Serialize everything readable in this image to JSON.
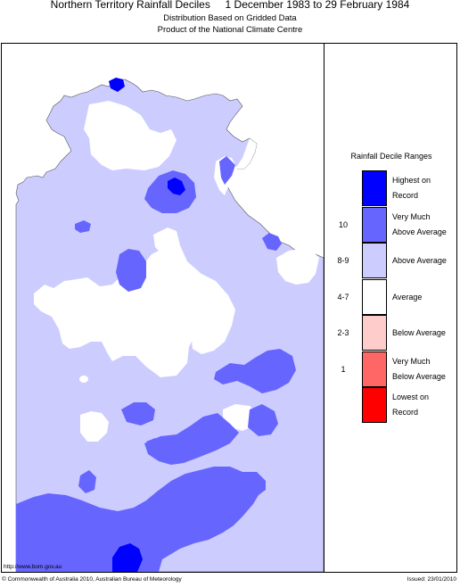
{
  "header": {
    "title": "Northern Territory Rainfall Deciles     1 December 1983 to 29 February 1984",
    "subtitle_1": "Distribution Based on Gridded Data",
    "subtitle_2": "Product of the National Climate Centre"
  },
  "map": {
    "colors": {
      "highest": "#0000ff",
      "very_much_above": "#6666ff",
      "above": "#ccccff",
      "average": "#ffffff",
      "below": "#ffcccc",
      "very_much_below": "#ff6666",
      "lowest": "#ff0000"
    }
  },
  "legend": {
    "title": "Rainfall Decile Ranges",
    "items": [
      {
        "range": "",
        "label_1": "Highest on",
        "label_2": "Record",
        "color": "#0000ff"
      },
      {
        "range": "10",
        "label_1": "Very Much",
        "label_2": "Above Average",
        "color": "#6666ff"
      },
      {
        "range": "8-9",
        "label_1": "Above Average",
        "label_2": "",
        "color": "#ccccff"
      },
      {
        "range": "4-7",
        "label_1": "Average",
        "label_2": "",
        "color": "#ffffff"
      },
      {
        "range": "2-3",
        "label_1": "Below Average",
        "label_2": "",
        "color": "#ffcccc"
      },
      {
        "range": "1",
        "label_1": "Very Much",
        "label_2": "Below Average",
        "color": "#ff6666"
      },
      {
        "range": "",
        "label_1": "Lowest on",
        "label_2": "Record",
        "color": "#ff0000"
      }
    ]
  },
  "footer": {
    "url": "http://www.bom.gov.au",
    "copyright": "© Commonwealth of Australia 2010, Australian Bureau of Meteorology",
    "issued": "Issued: 23/01/2010"
  }
}
